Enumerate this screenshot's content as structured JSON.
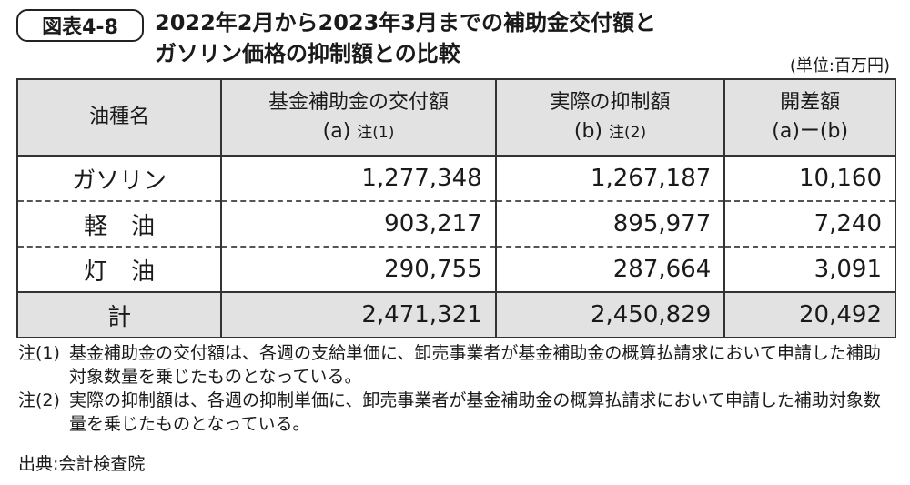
{
  "header": {
    "badge": "図表4-8",
    "title_lines": [
      "2022年2月から2023年3月までの補助金交付額と",
      "ガソリン価格の抑制額との比較"
    ],
    "unit": "(単位:百万円)"
  },
  "table": {
    "columns": [
      {
        "title": "油種名"
      },
      {
        "title": "基金補助金の交付額",
        "sub": "(a)",
        "note": "注(1)"
      },
      {
        "title": "実際の抑制額",
        "sub": "(b)",
        "note": "注(2)"
      },
      {
        "title": "開差額",
        "sub": "(a)ー(b)"
      }
    ],
    "rows": [
      [
        "ガソリン",
        "1,277,348",
        "1,267,187",
        "10,160"
      ],
      [
        "軽　油",
        "903,217",
        "895,977",
        "7,240"
      ],
      [
        "灯　油",
        "290,755",
        "287,664",
        "3,091"
      ]
    ],
    "total": [
      "計",
      "2,471,321",
      "2,450,829",
      "20,492"
    ]
  },
  "notes": [
    {
      "label": "注(1)",
      "text": "基金補助金の交付額は、各週の支給単価に、卸売事業者が基金補助金の概算払請求において申請した補助対象数量を乗じたものとなっている。"
    },
    {
      "label": "注(2)",
      "text": "実際の抑制額は、各週の抑制単価に、卸売事業者が基金補助金の概算払請求において申請した補助対象数量を乗じたものとなっている。"
    }
  ],
  "source": "出典:会計検査院"
}
